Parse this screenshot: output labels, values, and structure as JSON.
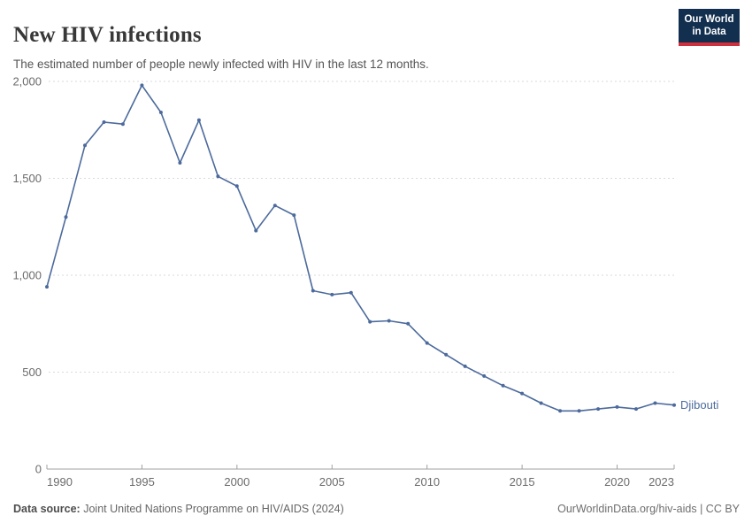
{
  "header": {
    "title": "New HIV infections",
    "subtitle": "The estimated number of people newly infected with HIV in the last 12 months."
  },
  "logo": {
    "line1": "Our World",
    "line2": "in Data",
    "bg_color": "#132f4f",
    "accent_color": "#cf303e"
  },
  "chart_data": {
    "type": "line",
    "title": "New HIV infections",
    "entity_label": "Djibouti",
    "x": [
      1990,
      1991,
      1992,
      1993,
      1994,
      1995,
      1996,
      1997,
      1998,
      1999,
      2000,
      2001,
      2002,
      2003,
      2004,
      2005,
      2006,
      2007,
      2008,
      2009,
      2010,
      2011,
      2012,
      2013,
      2014,
      2015,
      2016,
      2017,
      2018,
      2019,
      2020,
      2021,
      2022,
      2023
    ],
    "series": [
      {
        "name": "Djibouti",
        "values": [
          940,
          1300,
          1670,
          1790,
          1780,
          1980,
          1840,
          1580,
          1800,
          1510,
          1460,
          1230,
          1360,
          1310,
          920,
          900,
          910,
          760,
          765,
          750,
          650,
          590,
          530,
          480,
          430,
          390,
          340,
          300,
          300,
          310,
          320,
          310,
          340,
          330
        ]
      }
    ],
    "xlim": [
      1990,
      2023
    ],
    "ylim": [
      0,
      2000
    ],
    "xticks": [
      1990,
      1995,
      2000,
      2005,
      2010,
      2015,
      2020,
      2023
    ],
    "yticks": [
      0,
      500,
      1000,
      1500,
      2000
    ],
    "ytick_labels": [
      "0",
      "500",
      "1,000",
      "1,500",
      "2,000"
    ],
    "grid": "horizontal-dashed",
    "legend_position": "end-of-line",
    "line_color": "#4c6a9c",
    "grid_color": "#dadada",
    "axis_color": "#a0a0a0",
    "tick_label_color": "#6b6b6b"
  },
  "footer": {
    "source_label": "Data source:",
    "source_text": "Joint United Nations Programme on HIV/AIDS (2024)",
    "right_text": "OurWorldinData.org/hiv-aids | CC BY"
  }
}
